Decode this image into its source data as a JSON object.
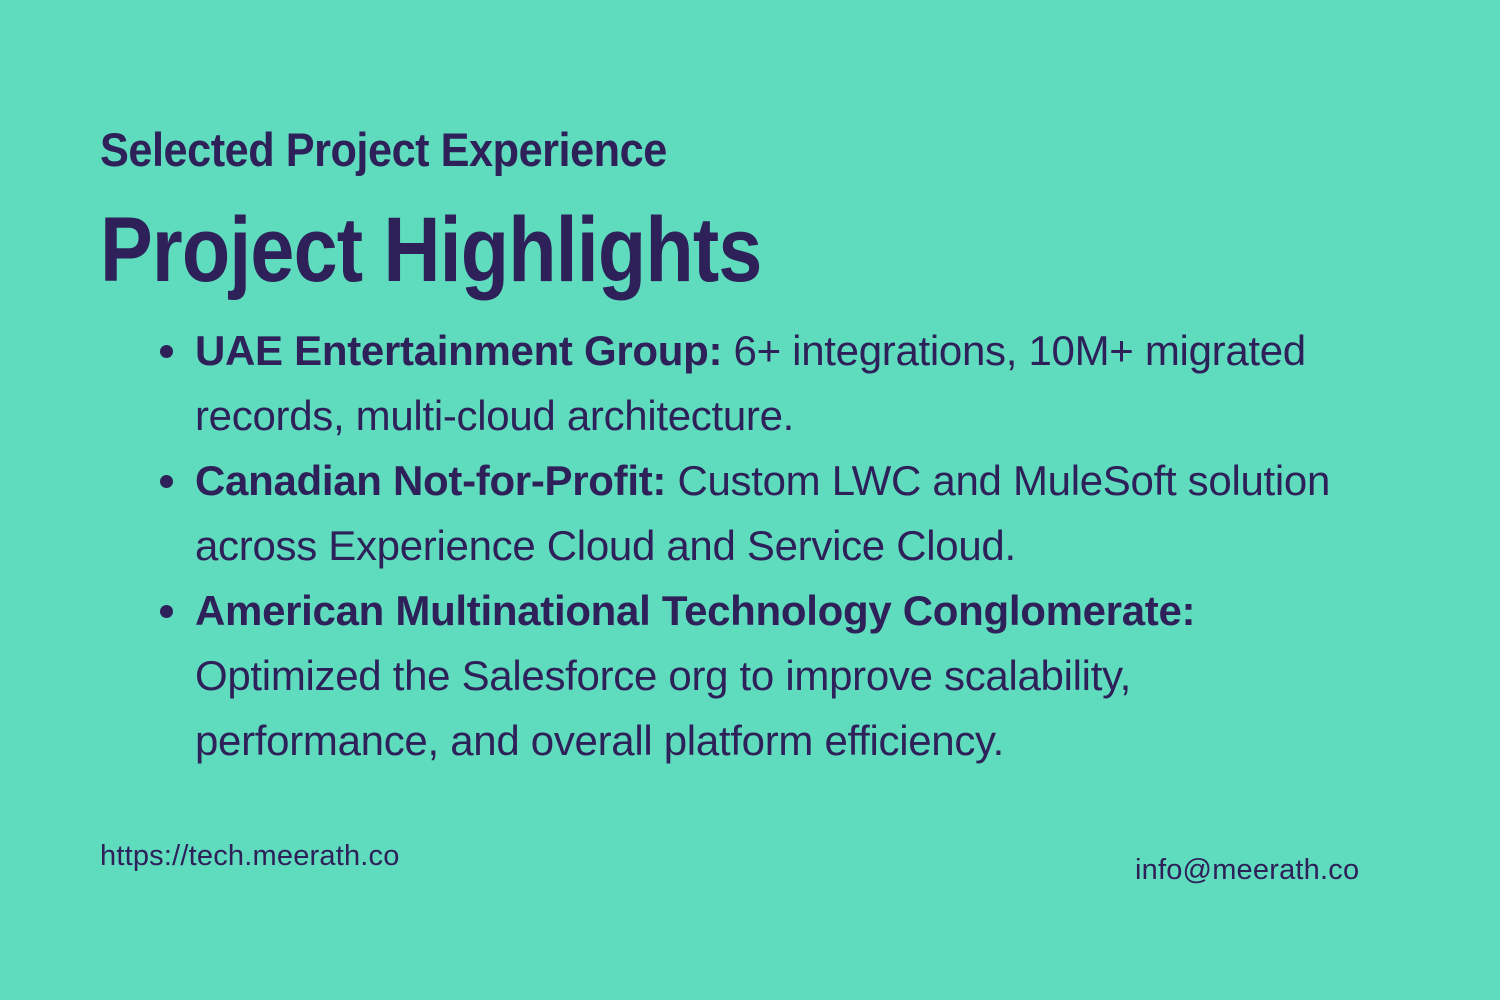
{
  "slide": {
    "background_color": "#5FDCBE",
    "text_color": "#2E2159",
    "eyebrow": "Selected Project Experience",
    "title": "Project Highlights",
    "bullets": [
      {
        "lead": "UAE Entertainment Group:",
        "text": "6+ integrations, 10M+ migrated records, multi-cloud architecture."
      },
      {
        "lead": "Canadian Not-for-Profit:",
        "text": "Custom LWC and MuleSoft solution across Experience Cloud and Service Cloud."
      },
      {
        "lead": "American Multinational Technology Conglomerate:",
        "text": "Optimized the Salesforce org to improve scalability, performance, and overall platform efficiency."
      }
    ],
    "footer": {
      "website_url": "https://tech.meerath.co",
      "email": "info@meerath.co"
    }
  }
}
